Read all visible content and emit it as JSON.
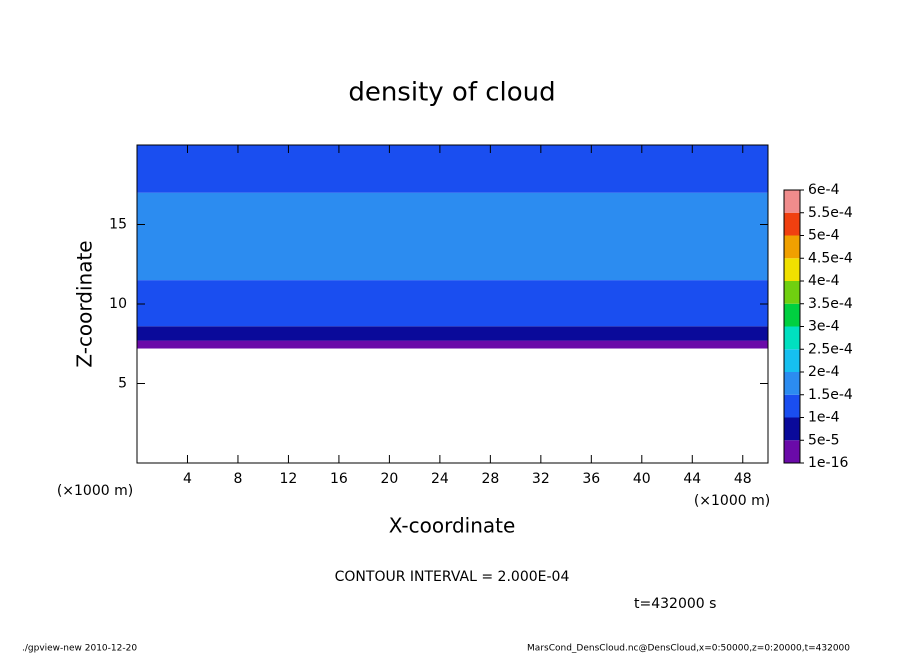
{
  "chart_data": {
    "type": "contour",
    "title": "density of cloud",
    "xlabel": "X-coordinate",
    "ylabel": "Z-coordinate",
    "xunit": "(×1000 m)",
    "xlim": [
      0,
      50
    ],
    "ylim": [
      0,
      20
    ],
    "xticks": [
      4,
      8,
      12,
      16,
      20,
      24,
      28,
      32,
      36,
      40,
      44,
      48
    ],
    "yticks": [
      5,
      10,
      15
    ],
    "z_bins": [
      7.2,
      7.7,
      8.6,
      11.5,
      17,
      20
    ],
    "values": [
      2e-05,
      7e-05,
      0.00012,
      0.00017,
      0.00012
    ],
    "levels": [
      1e-16,
      {
        "value": 5e-05,
        "label": "5e-5"
      },
      {
        "value": 0.0001,
        "label": "1e-4"
      },
      {
        "value": 0.00015,
        "label": "1.5e-4"
      },
      {
        "value": 0.0002,
        "label": "2e-4"
      },
      {
        "value": 0.00025,
        "label": "2.5e-4"
      },
      {
        "value": 0.0003,
        "label": "3e-4"
      },
      {
        "value": 0.00035,
        "label": "3.5e-4"
      },
      {
        "value": 0.0004,
        "label": "4e-4"
      },
      {
        "value": 0.00045,
        "label": "4.5e-4"
      },
      {
        "value": 0.0005,
        "label": "5e-4"
      },
      {
        "value": 0.00055,
        "label": "5.5e-4"
      },
      {
        "value": 0.0006,
        "label": "6e-4"
      }
    ],
    "colors": [
      "#6a0aa8",
      "#0a0a9a",
      "#1a4ef0",
      "#2c8cf0",
      "#16c0f0",
      "#00e0c0",
      "#00d040",
      "#70d010",
      "#f0e000",
      "#f0a000",
      "#f04010",
      "#f08c8c"
    ],
    "contour_interval": "CONTOUR INTERVAL = 2.000E-04",
    "time_label": "t=432000 s",
    "footer_left": "./gpview-new  2010-12-20",
    "footer_right": "MarsCond_DensCloud.nc@DensCloud,x=0:50000,z=0:20000,t=432000"
  }
}
